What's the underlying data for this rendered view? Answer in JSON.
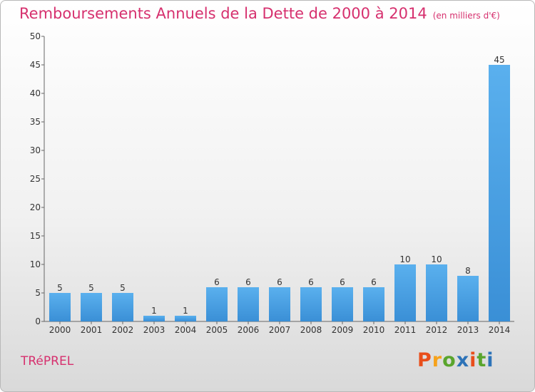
{
  "header": {
    "title": "Remboursements Annuels de la Dette de 2000 à 2014",
    "subtitle": "(en milliers d'€)"
  },
  "footer": {
    "town": "TRéPREL",
    "brand_letters": [
      {
        "ch": "P",
        "color": "#e94e1b"
      },
      {
        "ch": "r",
        "color": "#f6a21b"
      },
      {
        "ch": "o",
        "color": "#5aa52d"
      },
      {
        "ch": "x",
        "color": "#2d73b8"
      },
      {
        "ch": "i",
        "color": "#e94e1b"
      },
      {
        "ch": "t",
        "color": "#5aa52d"
      },
      {
        "ch": "i",
        "color": "#2d73b8"
      }
    ]
  },
  "chart_data": {
    "type": "bar",
    "categories": [
      "2000",
      "2001",
      "2002",
      "2003",
      "2004",
      "2005",
      "2006",
      "2007",
      "2008",
      "2009",
      "2010",
      "2011",
      "2012",
      "2013",
      "2014"
    ],
    "values": [
      5,
      5,
      5,
      1,
      1,
      6,
      6,
      6,
      6,
      6,
      6,
      10,
      10,
      8,
      45
    ],
    "ylim": [
      0,
      50
    ],
    "yticks": [
      0,
      5,
      10,
      15,
      20,
      25,
      30,
      35,
      40,
      45,
      50
    ],
    "grid": false,
    "bar_color": "#3a8fd6",
    "bar_color_light": "#5ab0ee"
  }
}
